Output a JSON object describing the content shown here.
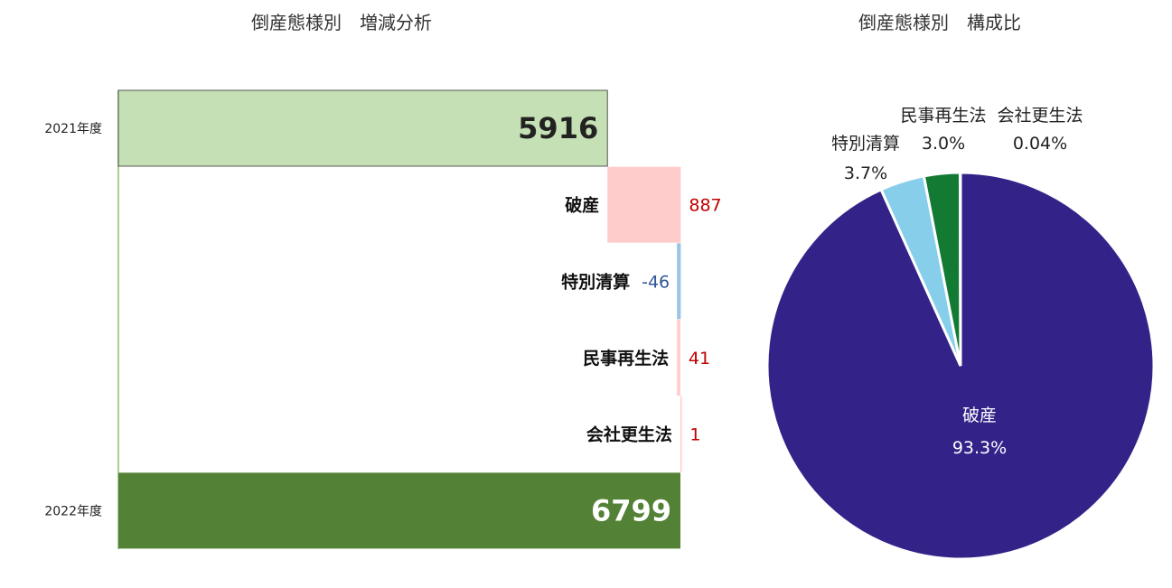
{
  "chart_data": [
    {
      "type": "bar",
      "title": "倒産態様別　増減分析",
      "categories": [
        "2021年度",
        "破産",
        "特別清算",
        "民事再生法",
        "会社更生法",
        "2022年度"
      ],
      "values": [
        5916,
        887,
        -46,
        41,
        1,
        6799
      ],
      "display_labels": [
        "5916",
        "887",
        "-46",
        "41",
        "1",
        "6799"
      ],
      "axis_labels": {
        "start": "2021年度",
        "end": "2022年度"
      },
      "xlim": [
        0,
        6799
      ],
      "colors": {
        "start_fill": "#c5e0b4",
        "end_fill": "#538135",
        "increase_fill": "#ffcccc",
        "decrease_fill": "#9dc3e6",
        "increase_label": "#c00000",
        "decrease_label": "#2f5597",
        "axis": "#a9d18e"
      },
      "legend": "none",
      "grid": false
    },
    {
      "type": "pie",
      "title": "倒産態様別　構成比",
      "labels": [
        "破産",
        "特別清算",
        "民事再生法",
        "会社更生法"
      ],
      "values": [
        93.3,
        3.7,
        3.0,
        0.04
      ],
      "percent_labels": [
        "93.3%",
        "3.7%",
        "3.0%",
        "0.04%"
      ],
      "colors": [
        "#332288",
        "#87ceeb",
        "#127a32",
        "#127a32"
      ],
      "legend": "none"
    }
  ]
}
